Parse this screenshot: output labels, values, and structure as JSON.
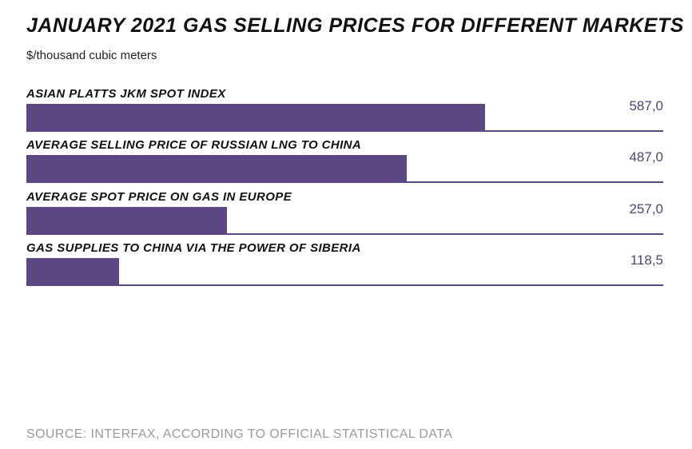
{
  "chart_data": {
    "type": "bar",
    "orientation": "horizontal",
    "title": "JANUARY 2021 GAS SELLING PRICES FOR DIFFERENT MARKETS",
    "subtitle": "$/thousand cubic meters",
    "categories": [
      "ASIAN PLATTS JKM SPOT INDEX",
      "AVERAGE SELLING PRICE OF RUSSIAN LNG TO CHINA",
      "AVERAGE SPOT PRICE ON GAS IN EUROPE",
      "GAS SUPPLIES TO CHINA VIA THE POWER OF SIBERIA"
    ],
    "values": [
      587.0,
      487.0,
      257.0,
      118.5
    ],
    "value_labels": [
      "587,0",
      "487,0",
      "257,0",
      "118,5"
    ],
    "xlim": [
      0,
      815
    ],
    "grid": false,
    "bar_color": "#5b4883",
    "source": "SOURCE: INTERFAX, ACCORDING TO OFFICIAL STATISTICAL DATA"
  }
}
